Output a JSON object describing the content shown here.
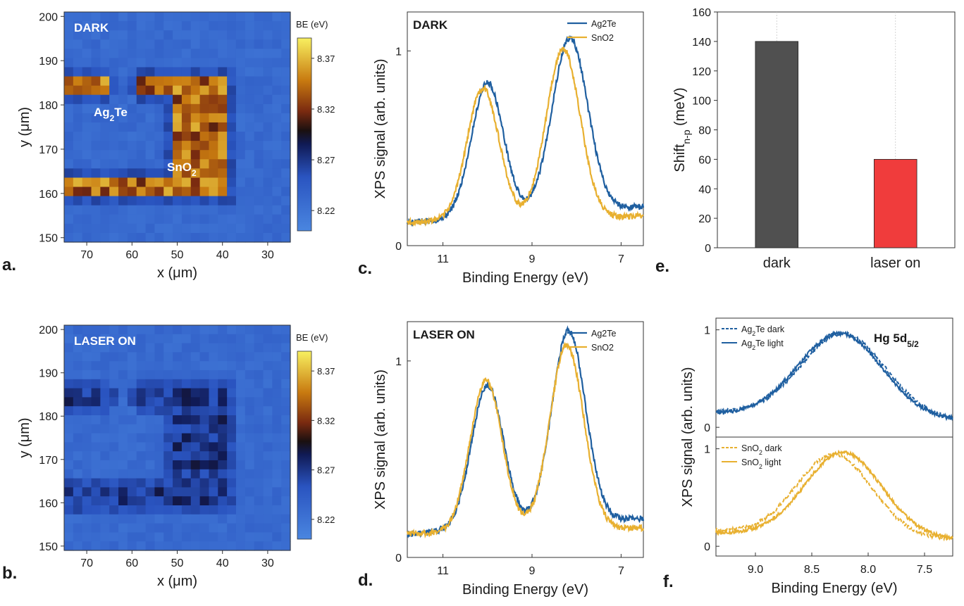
{
  "figure": {
    "panel_labels": [
      "a.",
      "b.",
      "c.",
      "d.",
      "e.",
      "f."
    ]
  },
  "chart_data": [
    {
      "id": "a",
      "type": "heatmap",
      "panel_label": "a.",
      "title": "DARK",
      "xlabel": "x (μm)",
      "ylabel": "y (μm)",
      "xlim": [
        75,
        25
      ],
      "ylim": [
        149,
        201
      ],
      "x_ticks": [
        70,
        60,
        50,
        40,
        30
      ],
      "y_ticks": [
        150,
        160,
        170,
        180,
        190,
        200
      ],
      "colorbar": {
        "label": "BE (eV)",
        "ticks": [
          8.22,
          8.27,
          8.32,
          8.37
        ],
        "range": [
          8.2,
          8.39
        ]
      },
      "annotations": [
        {
          "text": "Ag",
          "sub": "2",
          "rest": "Te"
        },
        {
          "text": "SnO",
          "sub": "2",
          "rest": ""
        }
      ],
      "grid_size": [
        25,
        25
      ],
      "background_value": 8.23,
      "structure_value": 8.34
    },
    {
      "id": "b",
      "type": "heatmap",
      "panel_label": "b.",
      "title": "LASER ON",
      "xlabel": "x (μm)",
      "ylabel": "y (μm)",
      "xlim": [
        75,
        25
      ],
      "ylim": [
        149,
        201
      ],
      "x_ticks": [
        70,
        60,
        50,
        40,
        30
      ],
      "y_ticks": [
        150,
        160,
        170,
        180,
        190,
        200
      ],
      "colorbar": {
        "label": "BE (eV)",
        "ticks": [
          8.22,
          8.27,
          8.32,
          8.37
        ],
        "range": [
          8.2,
          8.39
        ]
      },
      "grid_size": [
        25,
        25
      ],
      "background_value": 8.23,
      "structure_value": 8.27
    },
    {
      "id": "c",
      "type": "line",
      "panel_label": "c.",
      "title": "DARK",
      "xlabel": "Binding Energy (eV)",
      "ylabel": "XPS signal (arb. units)",
      "xlim": [
        11.8,
        6.5
      ],
      "ylim": [
        0,
        1.2
      ],
      "x_ticks": [
        11,
        9,
        7
      ],
      "y_ticks": [
        0,
        1
      ],
      "series": [
        {
          "name": "Ag2Te",
          "color": "#1f5fa0",
          "peaks": [
            {
              "center": 10.0,
              "height": 0.69,
              "width": 0.36
            },
            {
              "center": 8.15,
              "height": 0.89,
              "width": 0.4
            }
          ],
          "baseline": [
            0.12,
            0.2
          ]
        },
        {
          "name": "SnO2",
          "color": "#e8b030",
          "peaks": [
            {
              "center": 10.1,
              "height": 0.68,
              "width": 0.36
            },
            {
              "center": 8.3,
              "height": 0.87,
              "width": 0.38
            }
          ],
          "baseline": [
            0.12,
            0.15
          ]
        }
      ]
    },
    {
      "id": "d",
      "type": "line",
      "panel_label": "d.",
      "title": "LASER ON",
      "xlabel": "Binding Energy (eV)",
      "ylabel": "XPS signal (arb. units)",
      "xlim": [
        11.8,
        6.5
      ],
      "ylim": [
        0,
        1.2
      ],
      "x_ticks": [
        11,
        9,
        7
      ],
      "y_ticks": [
        0,
        1
      ],
      "series": [
        {
          "name": "Ag2Te",
          "color": "#1f5fa0",
          "peaks": [
            {
              "center": 10.0,
              "height": 0.73,
              "width": 0.36
            },
            {
              "center": 8.18,
              "height": 0.98,
              "width": 0.38
            }
          ],
          "baseline": [
            0.12,
            0.2
          ]
        },
        {
          "name": "SnO2",
          "color": "#e8b030",
          "peaks": [
            {
              "center": 10.03,
              "height": 0.77,
              "width": 0.36
            },
            {
              "center": 8.22,
              "height": 0.94,
              "width": 0.38
            }
          ],
          "baseline": [
            0.12,
            0.15
          ]
        }
      ]
    },
    {
      "id": "e",
      "type": "bar",
      "panel_label": "e.",
      "categories": [
        "dark",
        "laser on"
      ],
      "values": [
        140,
        60
      ],
      "colors": [
        "#505050",
        "#f03c3c"
      ],
      "ylabel": "Shift",
      "ylabel_sub": "n-p",
      "ylabel_unit": " (meV)",
      "ylim": [
        0,
        160
      ],
      "y_ticks": [
        0,
        20,
        40,
        60,
        80,
        100,
        120,
        140,
        160
      ]
    },
    {
      "id": "f",
      "type": "line",
      "panel_label": "f.",
      "title": "Hg 5d",
      "title_sub": "5/2",
      "xlabel": "Binding Energy (eV)",
      "ylabel": "XPS signal (arb. units)",
      "xlim": [
        9.35,
        7.25
      ],
      "x_ticks": [
        9.0,
        8.5,
        8.0,
        7.5
      ],
      "y_ticks": [
        0,
        1
      ],
      "subplots": [
        {
          "ylim": [
            -0.1,
            1.12
          ],
          "color": "#1f5fa0",
          "series": [
            {
              "name": "Ag2Te dark",
              "legend": {
                "text": "Ag",
                "sub": "2",
                "rest": "Te dark"
              },
              "style": "dashed",
              "center": 8.22,
              "height": 0.85,
              "width": 0.37,
              "baseline": [
                0.16,
                0.07
              ]
            },
            {
              "name": "Ag2Te light",
              "legend": {
                "text": "Ag",
                "sub": "2",
                "rest": "Te light"
              },
              "style": "solid",
              "center": 8.25,
              "height": 0.86,
              "width": 0.37,
              "baseline": [
                0.14,
                0.07
              ]
            }
          ]
        },
        {
          "ylim": [
            -0.1,
            1.12
          ],
          "color": "#e8b030",
          "series": [
            {
              "name": "SnO2 dark",
              "legend": {
                "text": "SnO",
                "sub": "2",
                "rest": " dark"
              },
              "style": "dashed",
              "center": 8.3,
              "height": 0.83,
              "width": 0.33,
              "baseline": [
                0.16,
                0.07
              ]
            },
            {
              "name": "SnO2 light",
              "legend": {
                "text": "SnO",
                "sub": "2",
                "rest": " light"
              },
              "style": "solid",
              "center": 8.22,
              "height": 0.86,
              "width": 0.34,
              "baseline": [
                0.14,
                0.07
              ]
            }
          ]
        }
      ]
    }
  ]
}
